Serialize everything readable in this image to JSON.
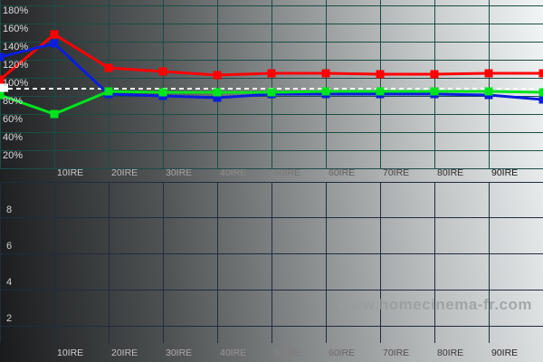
{
  "watermark": {
    "text": "www.homecinema-fr.com",
    "color": "#969c9c"
  },
  "background": {
    "left_color": "#1b1d1e",
    "right_color": "#f1f5f5",
    "style": "grayscale-ramp"
  },
  "top_chart": {
    "y_axis_labels": [
      "180%",
      "160%",
      "140%",
      "120%",
      "100%",
      "80%",
      "60%",
      "40%",
      "20%"
    ],
    "x_axis_labels": [
      "10IRE",
      "20IRE",
      "30IRE",
      "40IRE",
      "50IRE",
      "60IRE",
      "70IRE",
      "80IRE",
      "90IRE"
    ],
    "grid_color": "#1a4d48",
    "reference_line": {
      "value": 100,
      "style": "dashed",
      "color": "#ffffff"
    }
  },
  "bottom_chart": {
    "y_axis_labels": [
      "8",
      "6",
      "4",
      "2"
    ],
    "x_axis_labels": [
      "10IRE",
      "20IRE",
      "30IRE",
      "40IRE",
      "50IRE",
      "60IRE",
      "70IRE",
      "80IRE",
      "90IRE"
    ],
    "grid_color": "#212c40",
    "series": []
  },
  "chart_data": [
    {
      "type": "line",
      "x": [
        0,
        10,
        20,
        30,
        40,
        50,
        60,
        70,
        80,
        90,
        100
      ],
      "x_unit": "IRE",
      "x_tick_labels": [
        "10IRE",
        "20IRE",
        "30IRE",
        "40IRE",
        "50IRE",
        "60IRE",
        "70IRE",
        "80IRE",
        "90IRE"
      ],
      "y_tick_labels": [
        "180%",
        "160%",
        "140%",
        "120%",
        "100%",
        "80%",
        "60%",
        "40%",
        "20%"
      ],
      "ylim": [
        0,
        200
      ],
      "y_unit": "%",
      "grid": true,
      "legend": "none",
      "reference_line": 100,
      "series": [
        {
          "name": "Red",
          "color": "#ff0000",
          "values": [
            110,
            160,
            123,
            119,
            115,
            117,
            117,
            116,
            116,
            117,
            117
          ]
        },
        {
          "name": "Blue",
          "color": "#0a1edc",
          "values": [
            135,
            150,
            94,
            92,
            90,
            94,
            94,
            94,
            94,
            93,
            88
          ]
        },
        {
          "name": "Green",
          "color": "#00e41e",
          "values": [
            93,
            72,
            97,
            96,
            96,
            96,
            97,
            97,
            97,
            97,
            96
          ]
        }
      ],
      "white_point": {
        "x": 0,
        "value": 101,
        "color": "#ffffff"
      }
    },
    {
      "type": "line",
      "x_tick_labels": [
        "10IRE",
        "20IRE",
        "30IRE",
        "40IRE",
        "50IRE",
        "60IRE",
        "70IRE",
        "80IRE",
        "90IRE"
      ],
      "y_tick_labels": [
        "8",
        "6",
        "4",
        "2"
      ],
      "ylim": [
        0,
        10
      ],
      "grid": true,
      "legend": "none",
      "series": []
    }
  ]
}
